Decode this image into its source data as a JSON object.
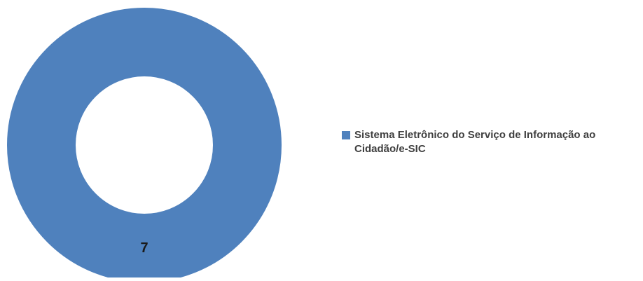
{
  "chart_data": {
    "type": "pie",
    "variant": "donut",
    "title": "",
    "categories": [
      "Sistema Eletrônico do Serviço de Informação ao Cidadão/e-SIC"
    ],
    "values": [
      7
    ],
    "data_labels": [
      "7"
    ],
    "colors": [
      "#4f81bd"
    ],
    "legend": "right"
  }
}
